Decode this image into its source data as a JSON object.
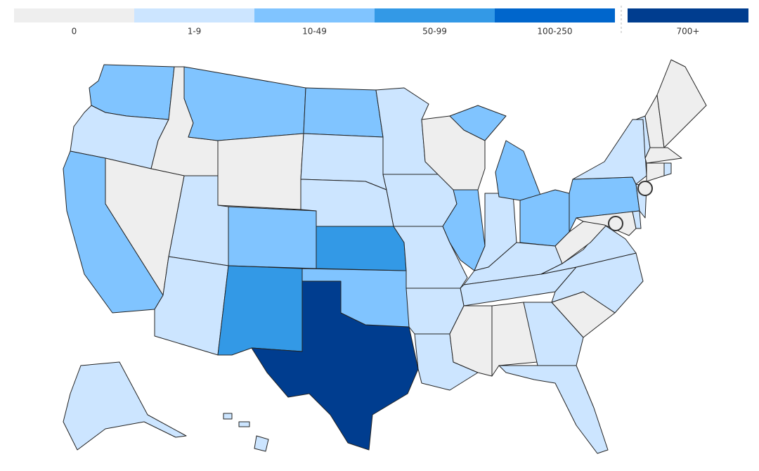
{
  "legend": [
    {
      "label": "0",
      "color": "#eeeeee"
    },
    {
      "label": "1-9",
      "color": "#cce5ff"
    },
    {
      "label": "10-49",
      "color": "#80c4ff"
    },
    {
      "label": "50-99",
      "color": "#3399e6"
    },
    {
      "label": "100-250",
      "color": "#0066cc"
    },
    {
      "label": "700+",
      "color": "#003d8f"
    }
  ]
}
